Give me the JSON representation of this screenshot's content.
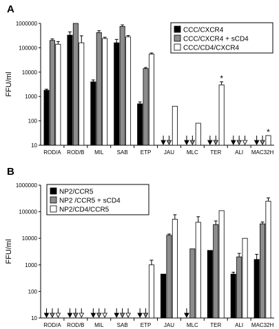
{
  "figure": {
    "series_colors": [
      "#000000",
      "#8c8c8c",
      "#ffffff"
    ],
    "errorbar_color": "#000000"
  },
  "chart_data": [
    {
      "type": "bar",
      "panel_label": "A",
      "title": "",
      "xlabel": "",
      "ylabel": "FFU/ml",
      "yscale": "log",
      "ylim": [
        10,
        1000000
      ],
      "yticks": [
        "10",
        "100",
        "1000",
        "10000",
        "100000",
        "1000000"
      ],
      "categories": [
        "ROD/A",
        "ROD/B",
        "MIL",
        "SAB",
        "ETP",
        "JAU",
        "MLC",
        "TER",
        "ALI",
        "MAC32H"
      ],
      "legend_position": "top-right",
      "series": [
        {
          "name": "CCC/CXCR4",
          "values": [
            1800,
            330000,
            4000,
            160000,
            500,
            null,
            null,
            null,
            null,
            null
          ],
          "errors": [
            200,
            120000,
            800,
            60000,
            100,
            null,
            null,
            null,
            null,
            null
          ]
        },
        {
          "name": "CCC/CXCR4 + sCD4",
          "values": [
            200000,
            1000000,
            420000,
            750000,
            14000,
            null,
            null,
            null,
            null,
            null
          ],
          "errors": [
            30000,
            0,
            80000,
            120000,
            1500,
            null,
            null,
            null,
            null,
            null
          ]
        },
        {
          "name": "CCC/CD4/CXCR4",
          "values": [
            140000,
            160000,
            240000,
            280000,
            55000,
            400,
            80,
            3000,
            null,
            25
          ],
          "errors": [
            40000,
            150000,
            30000,
            40000,
            6000,
            0,
            0,
            1000,
            null,
            0
          ]
        }
      ],
      "below_detection_arrows": [
        {
          "category": "JAU",
          "series": [
            0,
            1
          ]
        },
        {
          "category": "MLC",
          "series": [
            0,
            1
          ]
        },
        {
          "category": "TER",
          "series": [
            0,
            1
          ]
        },
        {
          "category": "ALI",
          "series": [
            0,
            1,
            2
          ]
        },
        {
          "category": "MAC32H",
          "series": [
            0,
            1
          ]
        }
      ],
      "annotations": [
        {
          "text": "*",
          "category": "TER",
          "series": 2
        },
        {
          "text": "*",
          "category": "MAC32H",
          "series": 2
        }
      ]
    },
    {
      "type": "bar",
      "panel_label": "B",
      "title": "",
      "xlabel": "",
      "ylabel": "FFU/ml",
      "yscale": "log",
      "ylim": [
        10,
        1000000
      ],
      "yticks": [
        "10",
        "100",
        "1000",
        "10000",
        "100000",
        "1000000"
      ],
      "categories": [
        "ROD/A",
        "ROD/B",
        "MIL",
        "SAB",
        "ETP",
        "JAU",
        "MLC",
        "TER",
        "ALI",
        "MAC32H"
      ],
      "legend_position": "top-left",
      "series": [
        {
          "name": "NP2/CCR5",
          "values": [
            null,
            null,
            null,
            null,
            null,
            450,
            null,
            3500,
            450,
            1600
          ],
          "errors": [
            null,
            null,
            null,
            null,
            null,
            0,
            null,
            0,
            80,
            900
          ]
        },
        {
          "name": "NP2 /CCR5 + sCD4",
          "values": [
            null,
            null,
            null,
            null,
            null,
            13000,
            4000,
            33000,
            2000,
            35000
          ],
          "errors": [
            null,
            null,
            null,
            null,
            null,
            1500,
            0,
            12000,
            700,
            6000
          ]
        },
        {
          "name": "NP2/CD4/CCR5",
          "values": [
            null,
            null,
            null,
            null,
            1000,
            52000,
            40000,
            110000,
            10000,
            250000
          ],
          "errors": [
            null,
            null,
            null,
            null,
            500,
            25000,
            25000,
            0,
            0,
            80000
          ]
        }
      ],
      "below_detection_arrows": [
        {
          "category": "ROD/A",
          "series": [
            0,
            1,
            2
          ]
        },
        {
          "category": "ROD/B",
          "series": [
            0,
            1,
            2
          ]
        },
        {
          "category": "MIL",
          "series": [
            0,
            1,
            2
          ]
        },
        {
          "category": "SAB",
          "series": [
            0,
            1,
            2
          ]
        },
        {
          "category": "ETP",
          "series": [
            0,
            1
          ]
        },
        {
          "category": "MLC",
          "series": [
            0
          ]
        }
      ],
      "annotations": []
    }
  ]
}
